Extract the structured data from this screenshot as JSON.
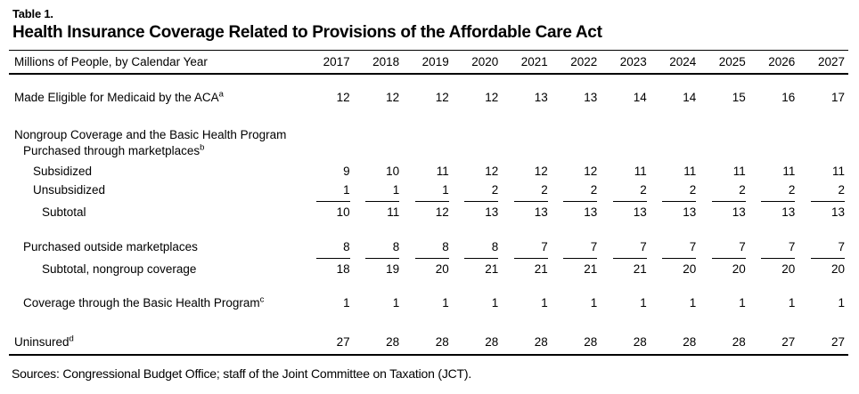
{
  "table_label": "Table 1.",
  "title": "Health Insurance Coverage Related to Provisions of the Affordable Care Act",
  "header": {
    "label": "Millions of People, by Calendar Year",
    "years": [
      "2017",
      "2018",
      "2019",
      "2020",
      "2021",
      "2022",
      "2023",
      "2024",
      "2025",
      "2026",
      "2027"
    ]
  },
  "rows": [
    {
      "label": "Made Eligible for Medicaid by the ACA",
      "sup": "a",
      "values": [
        12,
        12,
        12,
        12,
        13,
        13,
        14,
        14,
        15,
        16,
        17
      ]
    },
    {
      "label": "Nongroup Coverage and the Basic Health Program"
    },
    {
      "label": "Purchased through marketplaces",
      "sup": "b"
    },
    {
      "label": "Subsidized",
      "values": [
        9,
        10,
        11,
        12,
        12,
        12,
        11,
        11,
        11,
        11,
        11
      ]
    },
    {
      "label": "Unsubsidized",
      "values": [
        1,
        1,
        1,
        2,
        2,
        2,
        2,
        2,
        2,
        2,
        2
      ]
    },
    {
      "label": "Subtotal",
      "values": [
        10,
        11,
        12,
        13,
        13,
        13,
        13,
        13,
        13,
        13,
        13
      ]
    },
    {
      "label": "Purchased outside marketplaces",
      "values": [
        8,
        8,
        8,
        8,
        7,
        7,
        7,
        7,
        7,
        7,
        7
      ]
    },
    {
      "label": "Subtotal, nongroup coverage",
      "values": [
        18,
        19,
        20,
        21,
        21,
        21,
        21,
        20,
        20,
        20,
        20
      ]
    },
    {
      "label": "Coverage through the Basic Health Program",
      "sup": "c",
      "values": [
        1,
        1,
        1,
        1,
        1,
        1,
        1,
        1,
        1,
        1,
        1
      ]
    },
    {
      "label": "Uninsured",
      "sup": "d",
      "values": [
        27,
        28,
        28,
        28,
        28,
        28,
        28,
        28,
        28,
        27,
        27
      ]
    }
  ],
  "source_note": "Sources: Congressional Budget Office; staff of the Joint Committee on Taxation (JCT)."
}
